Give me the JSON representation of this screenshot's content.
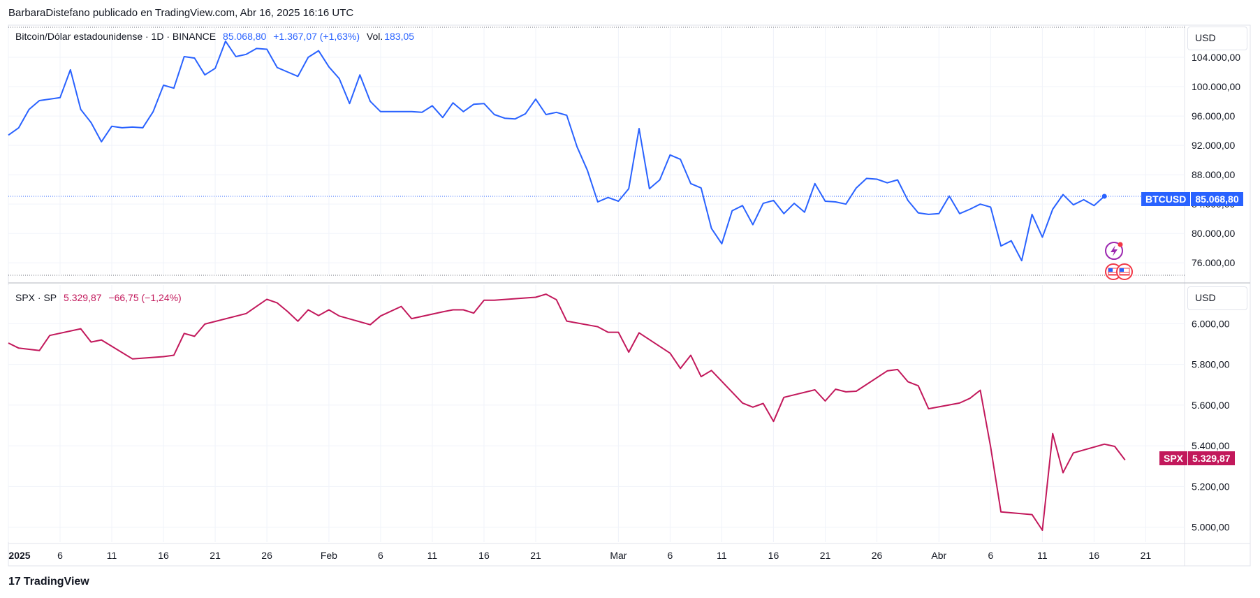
{
  "attribution": "BarbaraDistefano publicado en TradingView.com, Abr 16, 2025 16:16 UTC",
  "footer": {
    "brand": "TradingView",
    "logo_icon": "tradingview-logo-icon"
  },
  "colors": {
    "btc": "#2962ff",
    "spx": "#c2185b",
    "grid": "#f0f3fa",
    "border": "#e0e3eb"
  },
  "btc_legend": {
    "symbol": "Bitcoin/Dólar estadounidense · 1D · BINANCE",
    "price": "85.068,80",
    "change": "+1.367,07 (+1,63%)",
    "vol_label": "Vol.",
    "vol_value": "183,05"
  },
  "spx_legend": {
    "symbol": "SPX · SP",
    "price": "5.329,87",
    "change": "−66,75 (−1,24%)"
  },
  "currency_top": "USD",
  "currency_bottom": "USD",
  "btc_tag": {
    "label": "BTCUSD",
    "value": "85.068,80"
  },
  "spx_tag": {
    "label": "SPX",
    "value": "5.329,87"
  },
  "chart_data": [
    {
      "type": "line",
      "name": "BTCUSD",
      "x_tick_labels": [
        "2025",
        "6",
        "11",
        "16",
        "21",
        "26",
        "Feb",
        "6",
        "11",
        "16",
        "21",
        "Mar",
        "6",
        "11",
        "16",
        "21",
        "26",
        "Abr",
        "6",
        "11",
        "16",
        "21"
      ],
      "y_tick_labels": [
        "104.000,00",
        "100.000,00",
        "96.000,00",
        "92.000,00",
        "88.000,00",
        "84.000,00",
        "80.000,00",
        "76.000,00"
      ],
      "y_ticks": [
        104000,
        100000,
        96000,
        92000,
        88000,
        84000,
        80000,
        76000
      ],
      "ylim": [
        74500,
        108000
      ],
      "x_start": "2025-01-01",
      "x_end": "2025-04-23",
      "grid": true,
      "points": [
        [
          "2025-01-01",
          93400
        ],
        [
          "2025-01-02",
          94400
        ],
        [
          "2025-01-03",
          96900
        ],
        [
          "2025-01-04",
          98100
        ],
        [
          "2025-01-06",
          98500
        ],
        [
          "2025-01-07",
          102300
        ],
        [
          "2025-01-08",
          96900
        ],
        [
          "2025-01-09",
          95100
        ],
        [
          "2025-01-10",
          92500
        ],
        [
          "2025-01-11",
          94600
        ],
        [
          "2025-01-12",
          94400
        ],
        [
          "2025-01-13",
          94500
        ],
        [
          "2025-01-14",
          94400
        ],
        [
          "2025-01-15",
          96600
        ],
        [
          "2025-01-16",
          100200
        ],
        [
          "2025-01-17",
          99800
        ],
        [
          "2025-01-18",
          104100
        ],
        [
          "2025-01-19",
          103900
        ],
        [
          "2025-01-20",
          101600
        ],
        [
          "2025-01-21",
          102500
        ],
        [
          "2025-01-22",
          106200
        ],
        [
          "2025-01-23",
          104100
        ],
        [
          "2025-01-24",
          104400
        ],
        [
          "2025-01-25",
          105200
        ],
        [
          "2025-01-26",
          105100
        ],
        [
          "2025-01-27",
          102600
        ],
        [
          "2025-01-28",
          102000
        ],
        [
          "2025-01-29",
          101400
        ],
        [
          "2025-01-30",
          104000
        ],
        [
          "2025-01-31",
          104900
        ],
        [
          "2025-02-01",
          102700
        ],
        [
          "2025-02-02",
          101100
        ],
        [
          "2025-02-03",
          97700
        ],
        [
          "2025-02-04",
          101600
        ],
        [
          "2025-02-05",
          98000
        ],
        [
          "2025-02-06",
          96600
        ],
        [
          "2025-02-07",
          96600
        ],
        [
          "2025-02-08",
          96600
        ],
        [
          "2025-02-09",
          96600
        ],
        [
          "2025-02-10",
          96500
        ],
        [
          "2025-02-11",
          97400
        ],
        [
          "2025-02-12",
          95800
        ],
        [
          "2025-02-13",
          97800
        ],
        [
          "2025-02-14",
          96600
        ],
        [
          "2025-02-15",
          97600
        ],
        [
          "2025-02-16",
          97700
        ],
        [
          "2025-02-17",
          96200
        ],
        [
          "2025-02-18",
          95700
        ],
        [
          "2025-02-19",
          95600
        ],
        [
          "2025-02-20",
          96300
        ],
        [
          "2025-02-21",
          98300
        ],
        [
          "2025-02-22",
          96200
        ],
        [
          "2025-02-23",
          96500
        ],
        [
          "2025-02-24",
          96100
        ],
        [
          "2025-02-25",
          91800
        ],
        [
          "2025-02-26",
          88600
        ],
        [
          "2025-02-27",
          84300
        ],
        [
          "2025-02-28",
          84900
        ],
        [
          "2025-03-01",
          84400
        ],
        [
          "2025-03-02",
          86100
        ],
        [
          "2025-03-03",
          94300
        ],
        [
          "2025-03-04",
          86100
        ],
        [
          "2025-03-05",
          87300
        ],
        [
          "2025-03-06",
          90700
        ],
        [
          "2025-03-07",
          90100
        ],
        [
          "2025-03-08",
          86800
        ],
        [
          "2025-03-09",
          86200
        ],
        [
          "2025-03-10",
          80700
        ],
        [
          "2025-03-11",
          78600
        ],
        [
          "2025-03-12",
          83100
        ],
        [
          "2025-03-13",
          83800
        ],
        [
          "2025-03-14",
          81200
        ],
        [
          "2025-03-15",
          84100
        ],
        [
          "2025-03-16",
          84500
        ],
        [
          "2025-03-17",
          82700
        ],
        [
          "2025-03-18",
          84100
        ],
        [
          "2025-03-19",
          82900
        ],
        [
          "2025-03-20",
          86800
        ],
        [
          "2025-03-21",
          84400
        ],
        [
          "2025-03-22",
          84300
        ],
        [
          "2025-03-23",
          84000
        ],
        [
          "2025-03-24",
          86200
        ],
        [
          "2025-03-25",
          87500
        ],
        [
          "2025-03-26",
          87400
        ],
        [
          "2025-03-27",
          86900
        ],
        [
          "2025-03-28",
          87300
        ],
        [
          "2025-03-29",
          84500
        ],
        [
          "2025-03-30",
          82800
        ],
        [
          "2025-03-31",
          82600
        ],
        [
          "2025-04-01",
          82700
        ],
        [
          "2025-04-02",
          85100
        ],
        [
          "2025-04-03",
          82700
        ],
        [
          "2025-04-04",
          83300
        ],
        [
          "2025-04-05",
          84000
        ],
        [
          "2025-04-06",
          83600
        ],
        [
          "2025-04-07",
          78300
        ],
        [
          "2025-04-08",
          79000
        ],
        [
          "2025-04-09",
          76300
        ],
        [
          "2025-04-10",
          82600
        ],
        [
          "2025-04-11",
          79500
        ],
        [
          "2025-04-12",
          83300
        ],
        [
          "2025-04-13",
          85300
        ],
        [
          "2025-04-14",
          83900
        ],
        [
          "2025-04-15",
          84600
        ],
        [
          "2025-04-16",
          83800
        ],
        [
          "2025-04-17",
          85068.8
        ]
      ]
    },
    {
      "type": "line",
      "name": "SPX",
      "y_tick_labels": [
        "6.000,00",
        "5.800,00",
        "5.600,00",
        "5.400,00",
        "5.200,00",
        "5.000,00"
      ],
      "y_ticks": [
        6000,
        5800,
        5600,
        5400,
        5200,
        5000
      ],
      "ylim": [
        4930,
        6190
      ],
      "grid": true,
      "points": [
        [
          "2025-01-01",
          5905
        ],
        [
          "2025-01-02",
          5880
        ],
        [
          "2025-01-04",
          5868
        ],
        [
          "2025-01-05",
          5942
        ],
        [
          "2025-01-08",
          5975
        ],
        [
          "2025-01-09",
          5910
        ],
        [
          "2025-01-10",
          5920
        ],
        [
          "2025-01-13",
          5827
        ],
        [
          "2025-01-16",
          5838
        ],
        [
          "2025-01-17",
          5845
        ],
        [
          "2025-01-18",
          5952
        ],
        [
          "2025-01-19",
          5938
        ],
        [
          "2025-01-20",
          5998
        ],
        [
          "2025-01-24",
          6050
        ],
        [
          "2025-01-25",
          6085
        ],
        [
          "2025-01-26",
          6120
        ],
        [
          "2025-01-27",
          6102
        ],
        [
          "2025-01-28",
          6060
        ],
        [
          "2025-01-29",
          6012
        ],
        [
          "2025-01-30",
          6068
        ],
        [
          "2025-01-31",
          6040
        ],
        [
          "2025-02-01",
          6068
        ],
        [
          "2025-02-02",
          6038
        ],
        [
          "2025-02-05",
          5995
        ],
        [
          "2025-02-06",
          6038
        ],
        [
          "2025-02-08",
          6085
        ],
        [
          "2025-02-09",
          6025
        ],
        [
          "2025-02-12",
          6058
        ],
        [
          "2025-02-13",
          6068
        ],
        [
          "2025-02-14",
          6068
        ],
        [
          "2025-02-15",
          6052
        ],
        [
          "2025-02-16",
          6115
        ],
        [
          "2025-02-17",
          6115
        ],
        [
          "2025-02-21",
          6130
        ],
        [
          "2025-02-22",
          6145
        ],
        [
          "2025-02-23",
          6118
        ],
        [
          "2025-02-24",
          6013
        ],
        [
          "2025-02-27",
          5985
        ],
        [
          "2025-02-28",
          5958
        ],
        [
          "2025-03-01",
          5958
        ],
        [
          "2025-03-02",
          5860
        ],
        [
          "2025-03-03",
          5955
        ],
        [
          "2025-03-06",
          5855
        ],
        [
          "2025-03-07",
          5780
        ],
        [
          "2025-03-08",
          5845
        ],
        [
          "2025-03-09",
          5740
        ],
        [
          "2025-03-10",
          5770
        ],
        [
          "2025-03-13",
          5610
        ],
        [
          "2025-03-14",
          5590
        ],
        [
          "2025-03-15",
          5608
        ],
        [
          "2025-03-16",
          5520
        ],
        [
          "2025-03-17",
          5638
        ],
        [
          "2025-03-20",
          5675
        ],
        [
          "2025-03-21",
          5620
        ],
        [
          "2025-03-22",
          5678
        ],
        [
          "2025-03-23",
          5665
        ],
        [
          "2025-03-24",
          5668
        ],
        [
          "2025-03-27",
          5768
        ],
        [
          "2025-03-28",
          5775
        ],
        [
          "2025-03-29",
          5715
        ],
        [
          "2025-03-30",
          5695
        ],
        [
          "2025-03-31",
          5582
        ],
        [
          "2025-04-03",
          5610
        ],
        [
          "2025-04-04",
          5633
        ],
        [
          "2025-04-05",
          5673
        ],
        [
          "2025-04-06",
          5395
        ],
        [
          "2025-04-07",
          5075
        ],
        [
          "2025-04-10",
          5062
        ],
        [
          "2025-04-11",
          4985
        ],
        [
          "2025-04-12",
          5460
        ],
        [
          "2025-04-13",
          5268
        ],
        [
          "2025-04-14",
          5365
        ],
        [
          "2025-04-17",
          5408
        ],
        [
          "2025-04-18",
          5397
        ],
        [
          "2025-04-19",
          5329.87
        ]
      ]
    }
  ]
}
